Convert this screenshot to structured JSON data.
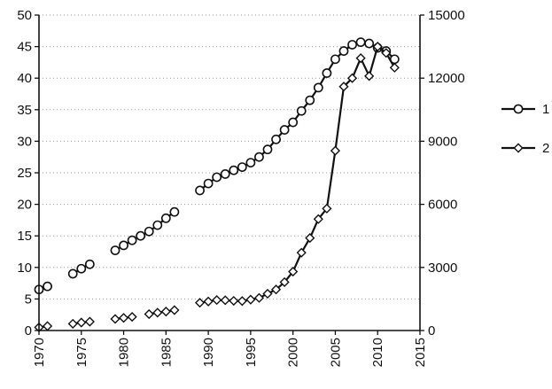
{
  "chart_data": {
    "type": "line",
    "title": "",
    "xlabel": "",
    "ylabel": "",
    "y2label": "",
    "grid": true,
    "legend_position": "right",
    "xlim": [
      1970,
      2015
    ],
    "ylim": [
      0,
      50
    ],
    "y2lim": [
      0,
      15000
    ],
    "x_ticks": [
      "1970",
      "1975",
      "1980",
      "1985",
      "1990",
      "1995",
      "2000",
      "2005",
      "2010",
      "2015"
    ],
    "y_ticks": [
      "0",
      "5",
      "10",
      "15",
      "20",
      "25",
      "30",
      "35",
      "40",
      "45",
      "50"
    ],
    "y2_ticks": [
      "0",
      "3000",
      "6000",
      "9000",
      "12000",
      "15000"
    ],
    "series": [
      {
        "name": "1",
        "axis": "left",
        "marker": "circle",
        "points": [
          [
            1970,
            6.5
          ],
          [
            1971,
            7.0
          ],
          [
            1974,
            9.0
          ],
          [
            1975,
            9.8
          ],
          [
            1976,
            10.5
          ],
          [
            1979,
            12.7
          ],
          [
            1980,
            13.5
          ],
          [
            1981,
            14.3
          ],
          [
            1982,
            15.0
          ],
          [
            1983,
            15.7
          ],
          [
            1984,
            16.7
          ],
          [
            1985,
            17.8
          ],
          [
            1986,
            18.8
          ],
          [
            1989,
            22.2
          ],
          [
            1990,
            23.3
          ],
          [
            1991,
            24.3
          ],
          [
            1992,
            24.8
          ],
          [
            1993,
            25.4
          ],
          [
            1994,
            25.9
          ],
          [
            1995,
            26.6
          ],
          [
            1996,
            27.5
          ],
          [
            1997,
            28.7
          ],
          [
            1998,
            30.3
          ],
          [
            1999,
            31.8
          ],
          [
            2000,
            33.0
          ],
          [
            2001,
            34.8
          ],
          [
            2002,
            36.5
          ],
          [
            2003,
            38.5
          ],
          [
            2004,
            40.8
          ],
          [
            2005,
            43.0
          ],
          [
            2006,
            44.3
          ],
          [
            2007,
            45.3
          ],
          [
            2008,
            45.7
          ],
          [
            2009,
            45.5
          ],
          [
            2010,
            44.8
          ],
          [
            2011,
            44.3
          ],
          [
            2012,
            43.0
          ]
        ]
      },
      {
        "name": "2",
        "axis": "right",
        "marker": "diamond",
        "points": [
          [
            1970,
            150
          ],
          [
            1971,
            210
          ],
          [
            1974,
            320
          ],
          [
            1975,
            380
          ],
          [
            1976,
            420
          ],
          [
            1979,
            550
          ],
          [
            1980,
            600
          ],
          [
            1981,
            650
          ],
          [
            1983,
            780
          ],
          [
            1984,
            850
          ],
          [
            1985,
            900
          ],
          [
            1986,
            970
          ],
          [
            1989,
            1320
          ],
          [
            1990,
            1380
          ],
          [
            1991,
            1450
          ],
          [
            1992,
            1440
          ],
          [
            1993,
            1410
          ],
          [
            1994,
            1400
          ],
          [
            1995,
            1470
          ],
          [
            1996,
            1550
          ],
          [
            1997,
            1750
          ],
          [
            1998,
            1950
          ],
          [
            1999,
            2300
          ],
          [
            2000,
            2800
          ],
          [
            2001,
            3700
          ],
          [
            2002,
            4400
          ],
          [
            2003,
            5300
          ],
          [
            2004,
            5800
          ],
          [
            2005,
            8550
          ],
          [
            2006,
            11600
          ],
          [
            2007,
            12000
          ],
          [
            2008,
            12950
          ],
          [
            2009,
            12100
          ],
          [
            2010,
            13500
          ],
          [
            2011,
            13200
          ],
          [
            2012,
            12500
          ]
        ]
      }
    ],
    "segments_note": ""
  }
}
